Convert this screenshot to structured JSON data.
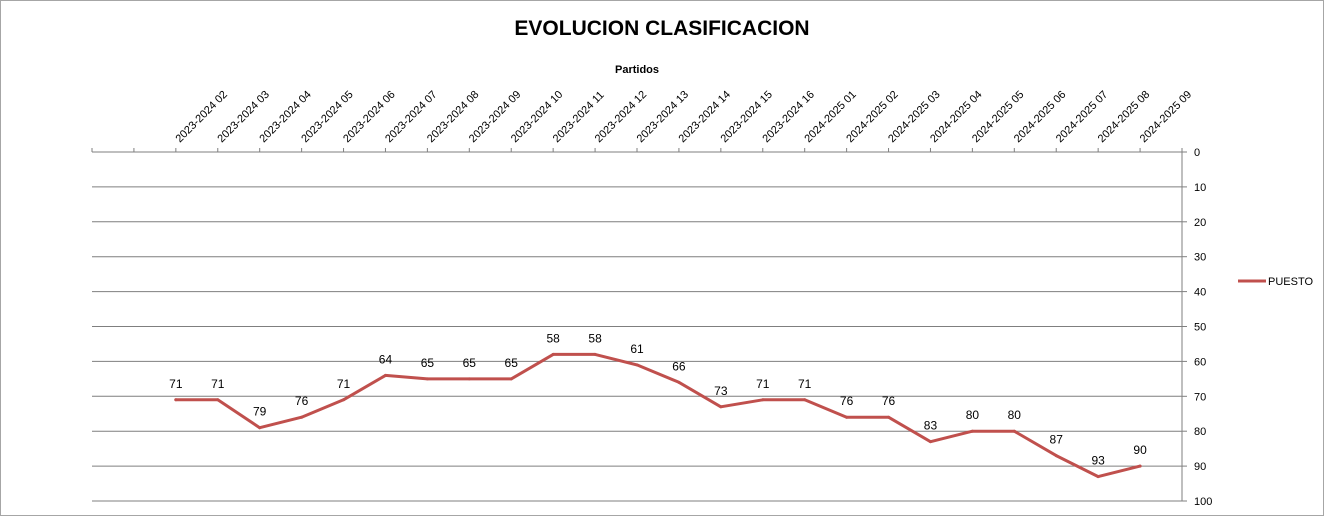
{
  "chart_data": {
    "type": "line",
    "title": "EVOLUCION CLASIFICACION",
    "xlabel": "Partidos",
    "ylabel": "",
    "ylim": [
      0,
      100
    ],
    "y_ticks": [
      0,
      10,
      20,
      30,
      40,
      50,
      60,
      70,
      80,
      90,
      100
    ],
    "y_inverted": true,
    "y_axis_position": "right",
    "x_axis_position": "top",
    "grid": true,
    "legend": "right",
    "categories": [
      "2023-2024 02",
      "2023-2024 03",
      "2023-2024 04",
      "2023-2024 05",
      "2023-2024 06",
      "2023-2024 07",
      "2023-2024 08",
      "2023-2024 09",
      "2023-2024 10",
      "2023-2024 11",
      "2023-2024 12",
      "2023-2024 13",
      "2023-2024 14",
      "2023-2024 15",
      "2023-2024 16",
      "2024-2025 01",
      "2024-2025 02",
      "2024-2025 03",
      "2024-2025 04",
      "2024-2025 05",
      "2024-2025 06",
      "2024-2025 07",
      "2024-2025 08",
      "2024-2025 09"
    ],
    "series": [
      {
        "name": "PUESTO",
        "color": "#c0504d",
        "values": [
          71,
          71,
          79,
          76,
          71,
          64,
          65,
          65,
          65,
          58,
          58,
          61,
          66,
          73,
          71,
          71,
          76,
          76,
          83,
          80,
          80,
          87,
          93,
          90
        ]
      }
    ]
  }
}
